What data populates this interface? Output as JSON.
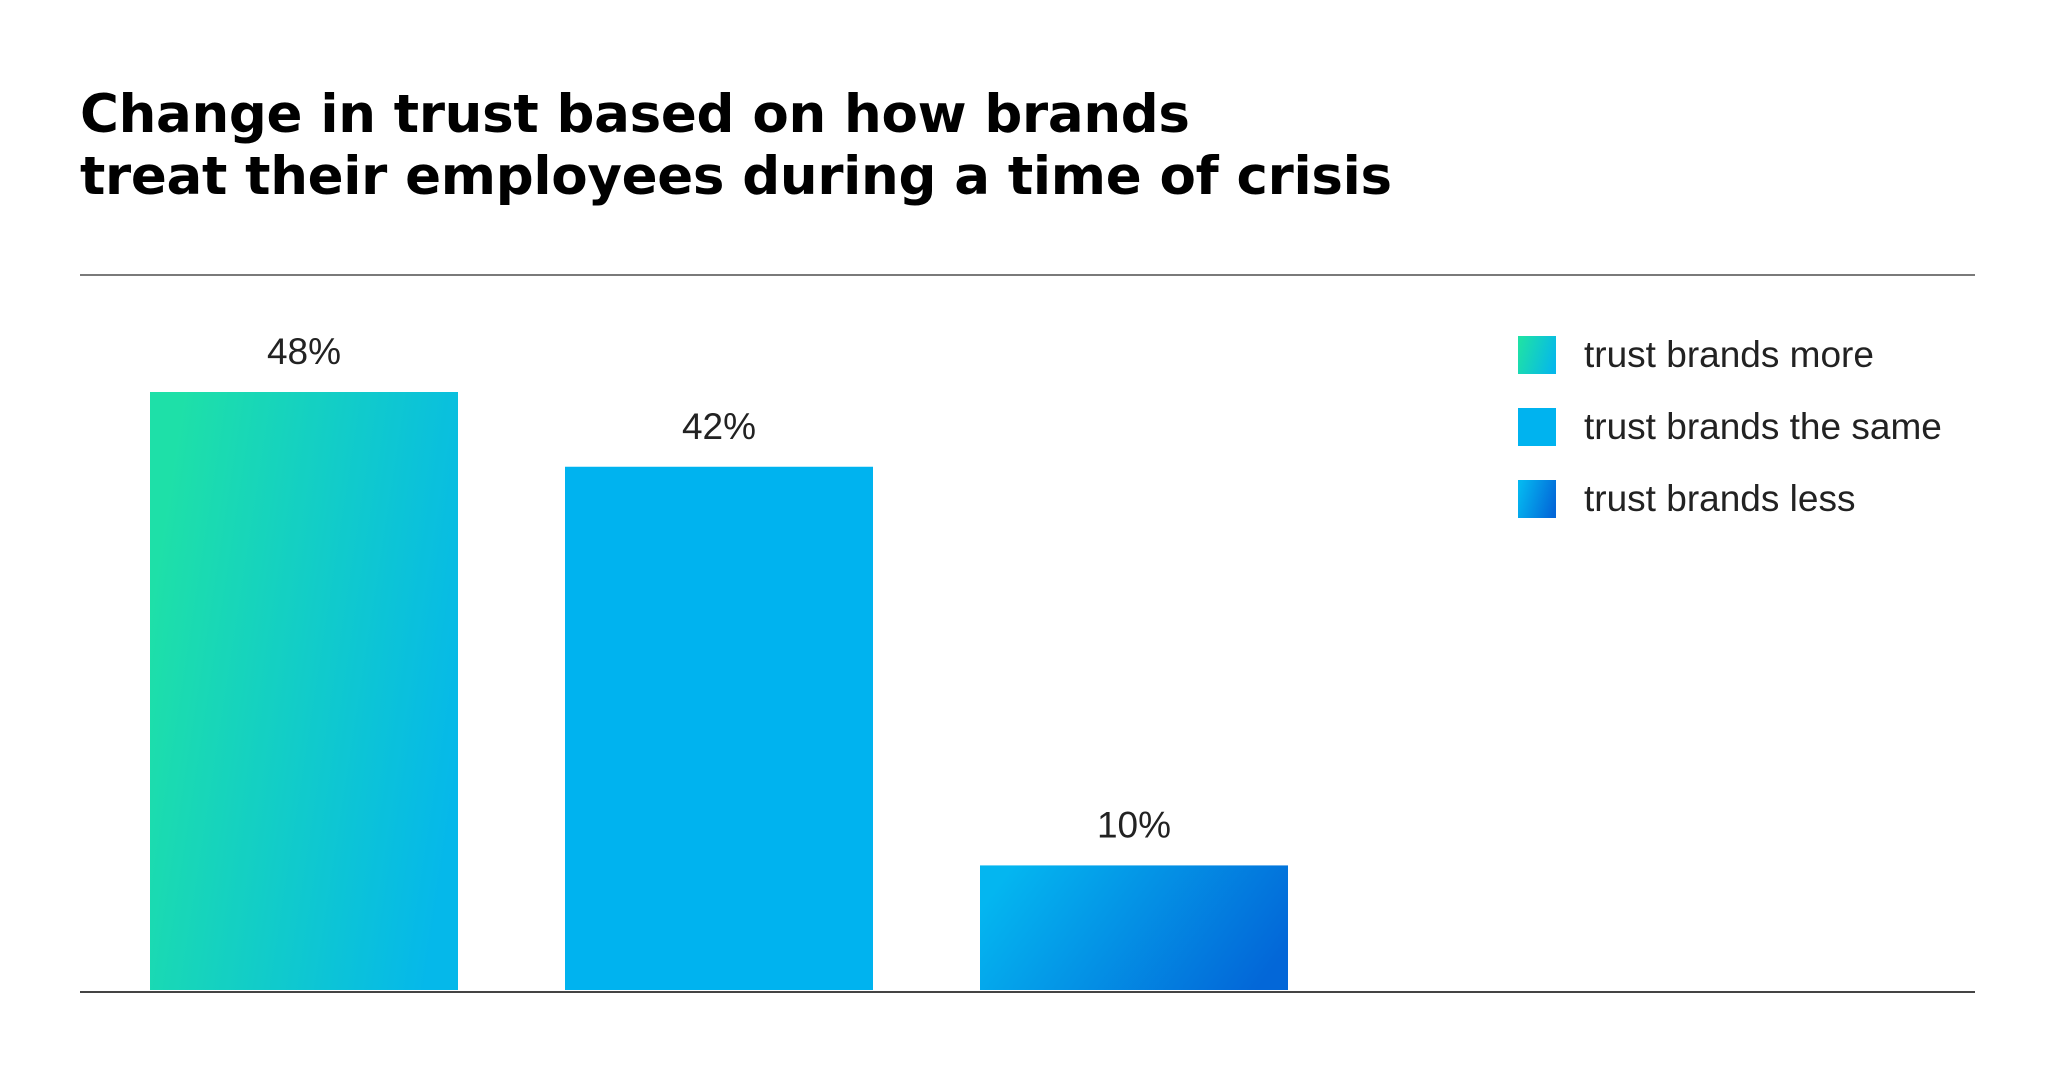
{
  "chart_data": {
    "type": "bar",
    "title_lines": [
      "Change in trust based on how brands",
      "treat their employees during a time of crisis"
    ],
    "categories": [
      "trust brands more",
      "trust brands the same",
      "trust brands less"
    ],
    "values": [
      48,
      42,
      10
    ],
    "value_labels": [
      "48%",
      "42%",
      "10%"
    ],
    "unit": "%",
    "ylim": [
      0,
      48
    ],
    "grid": false,
    "legend_position": "top-right",
    "legend": [
      {
        "label": "trust brands more",
        "color_start": "#1ee0a8",
        "color_end": "#05b8ea"
      },
      {
        "label": "trust brands the same",
        "color_start": "#00b3ef",
        "color_end": "#00b3ef"
      },
      {
        "label": "trust brands less",
        "color_start": "#04b6f0",
        "color_end": "#0367d8"
      }
    ]
  }
}
